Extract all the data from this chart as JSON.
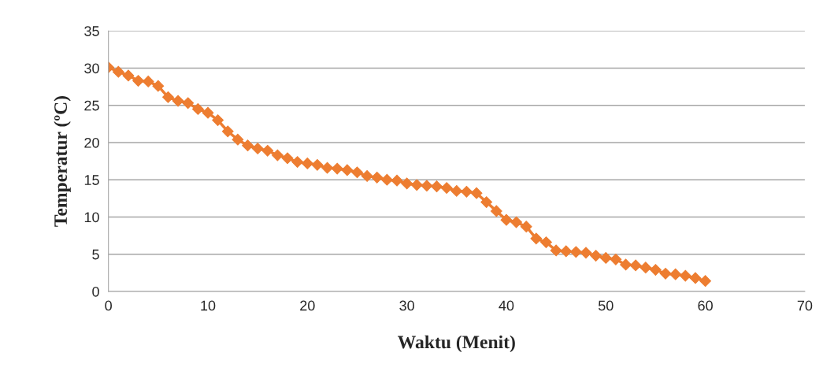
{
  "chart_data": {
    "type": "line",
    "xlabel": "Waktu (Menit)",
    "ylabel": "Temperatur (ºC)",
    "x": [
      0,
      1,
      2,
      3,
      4,
      5,
      6,
      7,
      8,
      9,
      10,
      11,
      12,
      13,
      14,
      15,
      16,
      17,
      18,
      19,
      20,
      21,
      22,
      23,
      24,
      25,
      26,
      27,
      28,
      29,
      30,
      31,
      32,
      33,
      34,
      35,
      36,
      37,
      38,
      39,
      40,
      41,
      42,
      43,
      44,
      45,
      46,
      47,
      48,
      49,
      50,
      51,
      52,
      53,
      54,
      55,
      56,
      57,
      58,
      59,
      60
    ],
    "series": [
      {
        "color": "#ed7d31",
        "values": [
          30.1,
          29.5,
          29.0,
          28.3,
          28.2,
          27.6,
          26.1,
          25.6,
          25.3,
          24.5,
          24.0,
          23.0,
          21.5,
          20.4,
          19.6,
          19.2,
          18.9,
          18.3,
          17.9,
          17.4,
          17.2,
          17.0,
          16.6,
          16.5,
          16.3,
          16.0,
          15.5,
          15.3,
          15.0,
          14.9,
          14.5,
          14.3,
          14.2,
          14.1,
          13.9,
          13.5,
          13.4,
          13.2,
          12.0,
          10.8,
          9.6,
          9.3,
          8.7,
          7.1,
          6.6,
          5.5,
          5.4,
          5.3,
          5.2,
          4.8,
          4.5,
          4.3,
          3.6,
          3.5,
          3.2,
          2.9,
          2.4,
          2.3,
          2.1,
          1.8,
          1.4
        ]
      }
    ],
    "xlim": [
      0,
      70
    ],
    "xticks": [
      0,
      10,
      20,
      30,
      40,
      50,
      60,
      70
    ],
    "ylim": [
      0,
      35
    ],
    "yticks": [
      0,
      5,
      10,
      15,
      20,
      25,
      30,
      35
    ],
    "grid": "y",
    "marker": "diamond",
    "line_style": "solid"
  }
}
